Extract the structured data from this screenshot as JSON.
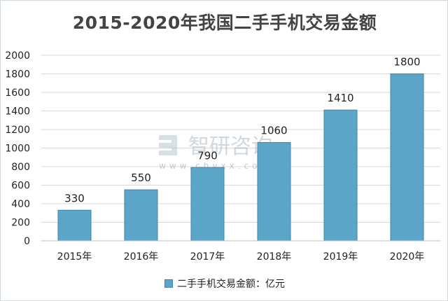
{
  "chart_data": {
    "type": "bar",
    "title": "2015-2020年我国二手手机交易金额",
    "categories": [
      "2015年",
      "2016年",
      "2017年",
      "2018年",
      "2019年",
      "2020年"
    ],
    "series": [
      {
        "name": "二手手机交易金额：亿元",
        "values": [
          330,
          550,
          790,
          1060,
          1410,
          1800
        ]
      }
    ],
    "data_labels": [
      "330",
      "550",
      "790",
      "1060",
      "1410",
      "1800"
    ],
    "ylim": [
      0,
      2000
    ],
    "yticks": [
      0,
      200,
      400,
      600,
      800,
      1000,
      1200,
      1400,
      1600,
      1800,
      2000
    ],
    "ytick_labels": [
      "0",
      "200",
      "400",
      "600",
      "800",
      "1000",
      "1200",
      "1400",
      "1600",
      "1800",
      "2000"
    ],
    "grid": true,
    "legend_position": "bottom",
    "colors": {
      "bar_fill": "#5ba6c8",
      "bar_stroke": "#3f86a8",
      "grid": "#d9d9d9"
    }
  },
  "watermark": {
    "brand": "智研咨询",
    "url": "www.chyxx.com"
  }
}
